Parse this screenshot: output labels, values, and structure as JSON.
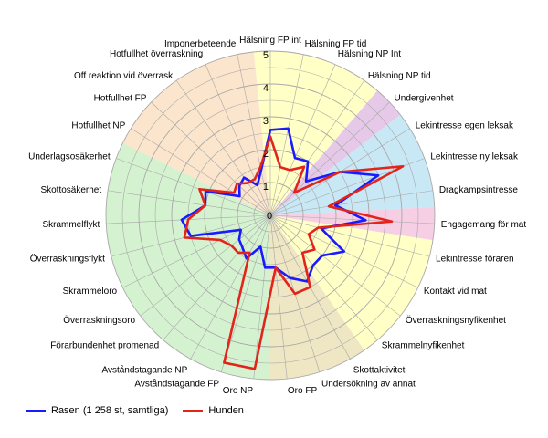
{
  "chart_data": {
    "type": "radar",
    "rlim": [
      0,
      5
    ],
    "r_ticks": [
      "1",
      "2",
      "3",
      "4",
      "5"
    ],
    "grid": true,
    "legend_position": "bottom-left",
    "categories": [
      "Hälsning FP int",
      "Hälsning FP tid",
      "Hälsning NP Int",
      "Hälsning NP tid",
      "Undergivenhet",
      "Lekintresse egen leksak",
      "Lekintresse ny leksak",
      "Dragkampsintresse",
      "Engagemang för mat",
      "Lekintresse föraren",
      "Kontakt vid mat",
      "Överraskningsnyfikenhet",
      "Skrammelnyfikenhet",
      "Skottaktivitet",
      "Undersökning av annat",
      "Oro FP",
      "Oro NP",
      "Avståndstagande FP",
      "Avståndstagande NP",
      "Förarbundenhet promenad",
      "Överraskningsoro",
      "Skrammeloro",
      "Överraskningsflykt",
      "Skrammelflykt",
      "Skottosäkerhet",
      "Underlagsosäkerhet",
      "Hotfullhet NP",
      "Hotfullhet FP",
      "Off reaktion vid överrask",
      "Hotfullhet överraskning",
      "Imponerbeteende"
    ],
    "series": [
      {
        "name": "Rasen (1 258 st, samtliga)",
        "color": "#1a1aff",
        "values": [
          2.6,
          2.7,
          1.9,
          2.0,
          1.5,
          2.5,
          3.5,
          2.0,
          2.9,
          1.6,
          2.5,
          2.0,
          2.0,
          2.3,
          2.0,
          1.6,
          1.6,
          1.0,
          1.5,
          1.3,
          1.2,
          1.0,
          2.5,
          2.7,
          2.0,
          2.1,
          1.1,
          1.3,
          1.4,
          1.0,
          1.4
        ]
      },
      {
        "name": "Hunden",
        "color": "#e3241b",
        "values": [
          2.4,
          1.5,
          1.5,
          1.8,
          1.0,
          2.5,
          4.3,
          1.8,
          3.7,
          1.5,
          1.3,
          1.7,
          1.5,
          2.5,
          2.5,
          1.6,
          4.7,
          4.7,
          1.3,
          1.5,
          1.5,
          1.7,
          2.7,
          2.5,
          2.0,
          2.3,
          1.3,
          1.4,
          1.2,
          1.2,
          1.5
        ]
      }
    ],
    "sectors": [
      {
        "from": 0,
        "to": 3,
        "color": "#ffffc6"
      },
      {
        "from": 4,
        "to": 4,
        "color": "#e6c9e8"
      },
      {
        "from": 5,
        "to": 7,
        "color": "#c9e8f5"
      },
      {
        "from": 8,
        "to": 8,
        "color": "#f7cfe4"
      },
      {
        "from": 9,
        "to": 12,
        "color": "#ffffc6"
      },
      {
        "from": 13,
        "to": 15,
        "color": "#efe6c4"
      },
      {
        "from": 16,
        "to": 25,
        "color": "#d5f2d0"
      },
      {
        "from": 26,
        "to": 30,
        "color": "#fbe5cc"
      }
    ]
  }
}
